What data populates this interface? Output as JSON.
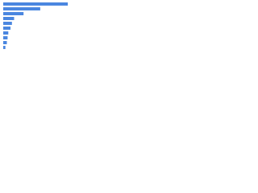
{
  "chart_data": {
    "type": "bar",
    "orientation": "horizontal",
    "categories": [
      null,
      null,
      null,
      null,
      null,
      null,
      null,
      null,
      null,
      null
    ],
    "values": [
      89,
      51,
      28,
      15,
      12,
      10,
      7,
      6,
      5,
      3
    ],
    "color": "#4a86e0",
    "xlim": [
      0,
      100
    ]
  }
}
